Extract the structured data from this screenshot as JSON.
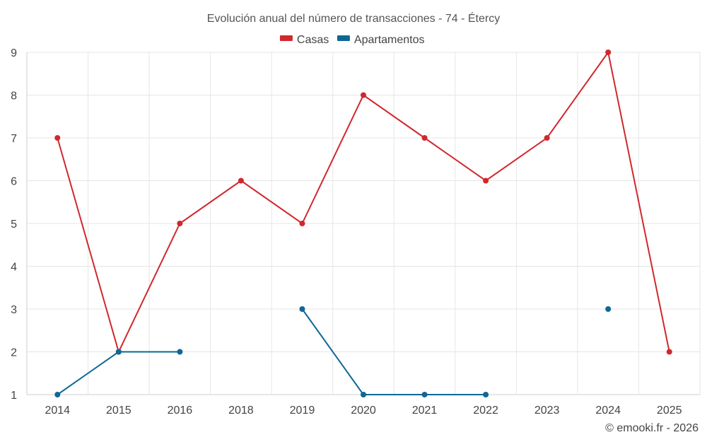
{
  "chart_data": {
    "type": "line",
    "title": "Evolución anual del número de transacciones - 74 - Étercy",
    "categories": [
      "2014",
      "2015",
      "2016",
      "2018",
      "2019",
      "2020",
      "2021",
      "2022",
      "2023",
      "2024",
      "2025"
    ],
    "ylim": [
      1,
      9
    ],
    "yticks": [
      "1",
      "2",
      "3",
      "4",
      "5",
      "6",
      "7",
      "8",
      "9"
    ],
    "grid": true,
    "legend_position": "top-center",
    "series": [
      {
        "name": "Casas",
        "color": "#d0282e",
        "values": [
          7,
          2,
          5,
          6,
          5,
          8,
          7,
          6,
          7,
          9,
          2
        ]
      },
      {
        "name": "Apartamentos",
        "color": "#0f6796",
        "values": [
          1,
          2,
          2,
          null,
          3,
          1,
          1,
          1,
          null,
          3,
          null
        ]
      }
    ]
  },
  "credit": "© emooki.fr - 2026"
}
